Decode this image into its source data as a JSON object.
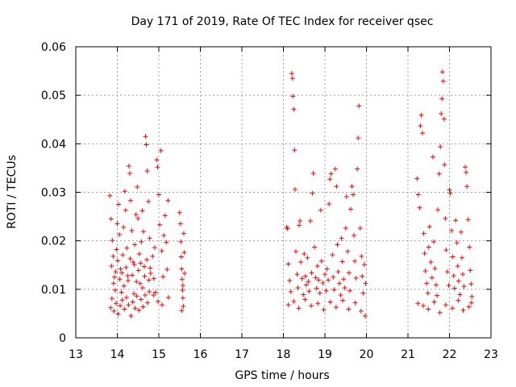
{
  "chart_data": {
    "type": "scatter",
    "title": "Day 171 of 2019, Rate Of TEC Index for receiver qsec",
    "xlabel": "GPS time / hours",
    "ylabel": "ROTI / TECUs",
    "xlim": [
      13,
      23
    ],
    "ylim": [
      0,
      0.06
    ],
    "xticks": [
      "13",
      "14",
      "15",
      "16",
      "17",
      "18",
      "19",
      "20",
      "21",
      "22",
      "23"
    ],
    "yticks": [
      "0",
      "0.01",
      "0.02",
      "0.03",
      "0.04",
      "0.05",
      "0.06"
    ],
    "grid": true,
    "marker": "+",
    "color": "#ff0000",
    "series": [
      {
        "name": "ROTI",
        "points": [
          [
            13.82,
            0.0293
          ],
          [
            13.85,
            0.0245
          ],
          [
            13.88,
            0.0201
          ],
          [
            13.9,
            0.0168
          ],
          [
            13.93,
            0.0125
          ],
          [
            13.95,
            0.0098
          ],
          [
            13.98,
            0.0182
          ],
          [
            14.0,
            0.0235
          ],
          [
            14.03,
            0.0275
          ],
          [
            14.05,
            0.0213
          ],
          [
            14.08,
            0.0142
          ],
          [
            14.1,
            0.0094
          ],
          [
            14.13,
            0.0171
          ],
          [
            14.15,
            0.0228
          ],
          [
            14.18,
            0.0302
          ],
          [
            14.2,
            0.0263
          ],
          [
            14.23,
            0.0185
          ],
          [
            14.25,
            0.0128
          ],
          [
            14.28,
            0.0354
          ],
          [
            14.3,
            0.0339
          ],
          [
            14.32,
            0.0283
          ],
          [
            14.35,
            0.0221
          ],
          [
            14.38,
            0.0156
          ],
          [
            14.4,
            0.0091
          ],
          [
            14.42,
            0.0192
          ],
          [
            14.45,
            0.0254
          ],
          [
            14.48,
            0.0311
          ],
          [
            14.5,
            0.0246
          ],
          [
            14.53,
            0.0173
          ],
          [
            14.55,
            0.0112
          ],
          [
            14.58,
            0.0198
          ],
          [
            14.6,
            0.0262
          ],
          [
            14.63,
            0.0219
          ],
          [
            14.65,
            0.0147
          ],
          [
            14.68,
            0.0415
          ],
          [
            14.7,
            0.0398
          ],
          [
            14.72,
            0.0344
          ],
          [
            14.75,
            0.0281
          ],
          [
            14.78,
            0.0205
          ],
          [
            14.8,
            0.0133
          ],
          [
            13.84,
            0.0062
          ],
          [
            13.87,
            0.0081
          ],
          [
            13.92,
            0.0055
          ],
          [
            13.97,
            0.0071
          ],
          [
            14.02,
            0.0049
          ],
          [
            14.07,
            0.0066
          ],
          [
            14.12,
            0.0078
          ],
          [
            14.17,
            0.0059
          ],
          [
            14.22,
            0.0083
          ],
          [
            14.27,
            0.0068
          ],
          [
            14.33,
            0.0045
          ],
          [
            14.37,
            0.0074
          ],
          [
            14.43,
            0.0061
          ],
          [
            14.47,
            0.0086
          ],
          [
            14.52,
            0.0057
          ],
          [
            14.57,
            0.0079
          ],
          [
            14.62,
            0.0064
          ],
          [
            14.67,
            0.0088
          ],
          [
            14.73,
            0.0072
          ],
          [
            14.77,
            0.0095
          ],
          [
            13.86,
            0.0148
          ],
          [
            13.91,
            0.0112
          ],
          [
            13.96,
            0.0136
          ],
          [
            14.01,
            0.0159
          ],
          [
            14.06,
            0.0121
          ],
          [
            14.11,
            0.0134
          ],
          [
            14.16,
            0.0107
          ],
          [
            14.21,
            0.0145
          ],
          [
            14.26,
            0.0118
          ],
          [
            14.31,
            0.0163
          ],
          [
            14.36,
            0.0129
          ],
          [
            14.41,
            0.0151
          ],
          [
            14.46,
            0.0116
          ],
          [
            14.51,
            0.0139
          ],
          [
            14.56,
            0.0154
          ],
          [
            14.61,
            0.0103
          ],
          [
            14.66,
            0.0127
          ],
          [
            14.71,
            0.0161
          ],
          [
            14.76,
            0.0119
          ],
          [
            14.79,
            0.0144
          ],
          [
            14.85,
            0.0168
          ],
          [
            14.88,
            0.0122
          ],
          [
            14.9,
            0.0186
          ],
          [
            14.92,
            0.0094
          ],
          [
            14.95,
            0.0367
          ],
          [
            14.97,
            0.0352
          ],
          [
            15.0,
            0.0295
          ],
          [
            15.02,
            0.0233
          ],
          [
            15.05,
            0.0386
          ],
          [
            15.07,
            0.0179
          ],
          [
            15.1,
            0.0126
          ],
          [
            15.12,
            0.0211
          ],
          [
            15.15,
            0.0252
          ],
          [
            15.18,
            0.0197
          ],
          [
            15.2,
            0.0141
          ],
          [
            15.22,
            0.0283
          ],
          [
            15.23,
            0.0083
          ],
          [
            15.08,
            0.0068
          ],
          [
            14.98,
            0.0075
          ],
          [
            14.87,
            0.0088
          ],
          [
            15.5,
            0.0258
          ],
          [
            15.52,
            0.0235
          ],
          [
            15.53,
            0.0198
          ],
          [
            15.54,
            0.0167
          ],
          [
            15.55,
            0.0142
          ],
          [
            15.56,
            0.0121
          ],
          [
            15.57,
            0.0098
          ],
          [
            15.58,
            0.0082
          ],
          [
            15.59,
            0.0065
          ],
          [
            15.6,
            0.0215
          ],
          [
            15.61,
            0.0176
          ],
          [
            15.62,
            0.0133
          ],
          [
            15.55,
            0.0056
          ],
          [
            15.58,
            0.0108
          ],
          [
            18.08,
            0.0228
          ],
          [
            18.1,
            0.0225
          ],
          [
            18.12,
            0.0152
          ],
          [
            18.15,
            0.0118
          ],
          [
            18.18,
            0.0095
          ],
          [
            18.2,
            0.0545
          ],
          [
            18.22,
            0.0535
          ],
          [
            18.23,
            0.0498
          ],
          [
            18.25,
            0.0471
          ],
          [
            18.27,
            0.0387
          ],
          [
            18.28,
            0.0306
          ],
          [
            18.3,
            0.0178
          ],
          [
            18.33,
            0.0131
          ],
          [
            18.35,
            0.0103
          ],
          [
            18.38,
            0.0232
          ],
          [
            18.4,
            0.0241
          ],
          [
            18.42,
            0.0156
          ],
          [
            18.45,
            0.0122
          ],
          [
            18.48,
            0.0089
          ],
          [
            18.5,
            0.0173
          ],
          [
            18.53,
            0.0127
          ],
          [
            18.55,
            0.0109
          ],
          [
            18.58,
            0.0165
          ],
          [
            18.6,
            0.0116
          ],
          [
            18.62,
            0.0096
          ],
          [
            18.65,
            0.0241
          ],
          [
            18.68,
            0.0134
          ],
          [
            18.7,
            0.0298
          ],
          [
            18.72,
            0.0339
          ],
          [
            18.75,
            0.0187
          ],
          [
            18.78,
            0.0124
          ],
          [
            18.8,
            0.0102
          ],
          [
            18.82,
            0.0148
          ],
          [
            18.85,
            0.0119
          ],
          [
            18.88,
            0.0092
          ],
          [
            18.9,
            0.0263
          ],
          [
            18.92,
            0.0158
          ],
          [
            18.95,
            0.0113
          ],
          [
            19.0,
            0.0131
          ],
          [
            19.03,
            0.0097
          ],
          [
            19.05,
            0.0142
          ],
          [
            19.08,
            0.0119
          ],
          [
            19.1,
            0.0276
          ],
          [
            19.12,
            0.0327
          ],
          [
            19.15,
            0.0338
          ],
          [
            19.18,
            0.0171
          ],
          [
            19.2,
            0.0125
          ],
          [
            19.22,
            0.0099
          ],
          [
            19.25,
            0.0348
          ],
          [
            19.28,
            0.0312
          ],
          [
            19.3,
            0.0192
          ],
          [
            19.32,
            0.0136
          ],
          [
            19.35,
            0.0112
          ],
          [
            19.38,
            0.0088
          ],
          [
            19.4,
            0.0205
          ],
          [
            19.42,
            0.0157
          ],
          [
            19.45,
            0.0121
          ],
          [
            19.48,
            0.0103
          ],
          [
            19.5,
            0.0226
          ],
          [
            19.52,
            0.0291
          ],
          [
            19.55,
            0.0178
          ],
          [
            19.58,
            0.0134
          ],
          [
            19.6,
            0.0097
          ],
          [
            19.62,
            0.0265
          ],
          [
            19.65,
            0.0312
          ],
          [
            19.68,
            0.0295
          ],
          [
            19.7,
            0.0211
          ],
          [
            19.72,
            0.0158
          ],
          [
            19.75,
            0.0123
          ],
          [
            19.78,
            0.0348
          ],
          [
            19.8,
            0.0412
          ],
          [
            19.82,
            0.0478
          ],
          [
            19.85,
            0.0226
          ],
          [
            19.88,
            0.0168
          ],
          [
            19.9,
            0.0127
          ],
          [
            19.92,
            0.0092
          ],
          [
            19.95,
            0.0151
          ],
          [
            19.98,
            0.0112
          ],
          [
            18.12,
            0.0068
          ],
          [
            18.25,
            0.0075
          ],
          [
            18.37,
            0.0061
          ],
          [
            18.52,
            0.0079
          ],
          [
            18.67,
            0.0066
          ],
          [
            18.83,
            0.0071
          ],
          [
            18.97,
            0.0058
          ],
          [
            19.13,
            0.0074
          ],
          [
            19.27,
            0.0063
          ],
          [
            19.43,
            0.0077
          ],
          [
            19.57,
            0.0059
          ],
          [
            19.73,
            0.0072
          ],
          [
            19.87,
            0.0055
          ],
          [
            19.97,
            0.0045
          ],
          [
            21.22,
            0.0328
          ],
          [
            21.25,
            0.0295
          ],
          [
            21.28,
            0.0268
          ],
          [
            21.3,
            0.0437
          ],
          [
            21.32,
            0.0459
          ],
          [
            21.35,
            0.0422
          ],
          [
            21.38,
            0.0215
          ],
          [
            21.4,
            0.0174
          ],
          [
            21.42,
            0.0138
          ],
          [
            21.45,
            0.0112
          ],
          [
            21.48,
            0.0092
          ],
          [
            21.5,
            0.0187
          ],
          [
            21.52,
            0.0229
          ],
          [
            21.55,
            0.0156
          ],
          [
            21.58,
            0.0124
          ],
          [
            21.6,
            0.0373
          ],
          [
            21.62,
            0.0198
          ],
          [
            21.65,
            0.0143
          ],
          [
            21.68,
            0.0109
          ],
          [
            21.7,
            0.0087
          ],
          [
            21.72,
            0.0264
          ],
          [
            21.75,
            0.0338
          ],
          [
            21.78,
            0.0394
          ],
          [
            21.8,
            0.0462
          ],
          [
            21.82,
            0.0493
          ],
          [
            21.83,
            0.0548
          ],
          [
            21.85,
            0.0529
          ],
          [
            21.87,
            0.0451
          ],
          [
            21.88,
            0.0357
          ],
          [
            21.9,
            0.0246
          ],
          [
            21.92,
            0.0181
          ],
          [
            21.95,
            0.0136
          ],
          [
            21.98,
            0.0108
          ],
          [
            22.0,
            0.0305
          ],
          [
            22.02,
            0.0298
          ],
          [
            22.05,
            0.0221
          ],
          [
            22.08,
            0.0167
          ],
          [
            22.1,
            0.0128
          ],
          [
            22.12,
            0.0102
          ],
          [
            22.15,
            0.0242
          ],
          [
            22.18,
            0.0196
          ],
          [
            22.2,
            0.0148
          ],
          [
            22.22,
            0.0117
          ],
          [
            22.25,
            0.0089
          ],
          [
            22.28,
            0.0218
          ],
          [
            22.3,
            0.0165
          ],
          [
            22.32,
            0.0131
          ],
          [
            22.35,
            0.0106
          ],
          [
            22.38,
            0.0352
          ],
          [
            22.4,
            0.0341
          ],
          [
            22.42,
            0.0312
          ],
          [
            22.45,
            0.0244
          ],
          [
            22.48,
            0.0187
          ],
          [
            22.5,
            0.0139
          ],
          [
            22.52,
            0.0111
          ],
          [
            22.54,
            0.0085
          ],
          [
            21.24,
            0.0071
          ],
          [
            21.37,
            0.0066
          ],
          [
            21.49,
            0.0059
          ],
          [
            21.63,
            0.0074
          ],
          [
            21.77,
            0.0052
          ],
          [
            21.91,
            0.0068
          ],
          [
            22.07,
            0.0061
          ],
          [
            22.21,
            0.0077
          ],
          [
            22.33,
            0.0057
          ],
          [
            22.47,
            0.0064
          ],
          [
            22.53,
            0.0072
          ]
        ]
      }
    ]
  }
}
